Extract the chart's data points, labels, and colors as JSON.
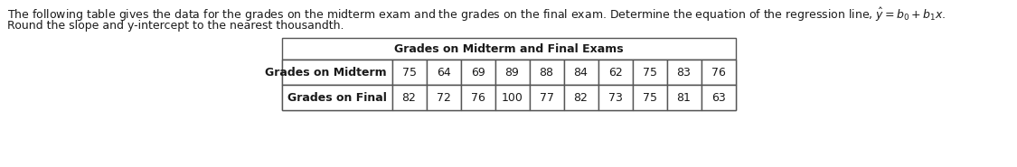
{
  "line1_plain": "The following table gives the data for the grades on the midterm exam and the grades on the final exam. Determine the equation of the regression line, ",
  "line1_formula": "$\\hat{y} = b_0 + b_1x$.",
  "line2": "Round the slope and y-intercept to the nearest thousandth.",
  "table_title": "Grades on Midterm and Final Exams",
  "row_labels": [
    "Grades on Midterm",
    "Grades on Final"
  ],
  "midterm": [
    75,
    64,
    69,
    89,
    88,
    84,
    62,
    75,
    83,
    76
  ],
  "final": [
    82,
    72,
    76,
    100,
    77,
    82,
    73,
    75,
    81,
    63
  ],
  "bg_color": "#ffffff",
  "border_color": "#555555",
  "text_color": "#1a1a1a",
  "fig_width": 11.25,
  "fig_height": 1.85,
  "dpi": 100
}
